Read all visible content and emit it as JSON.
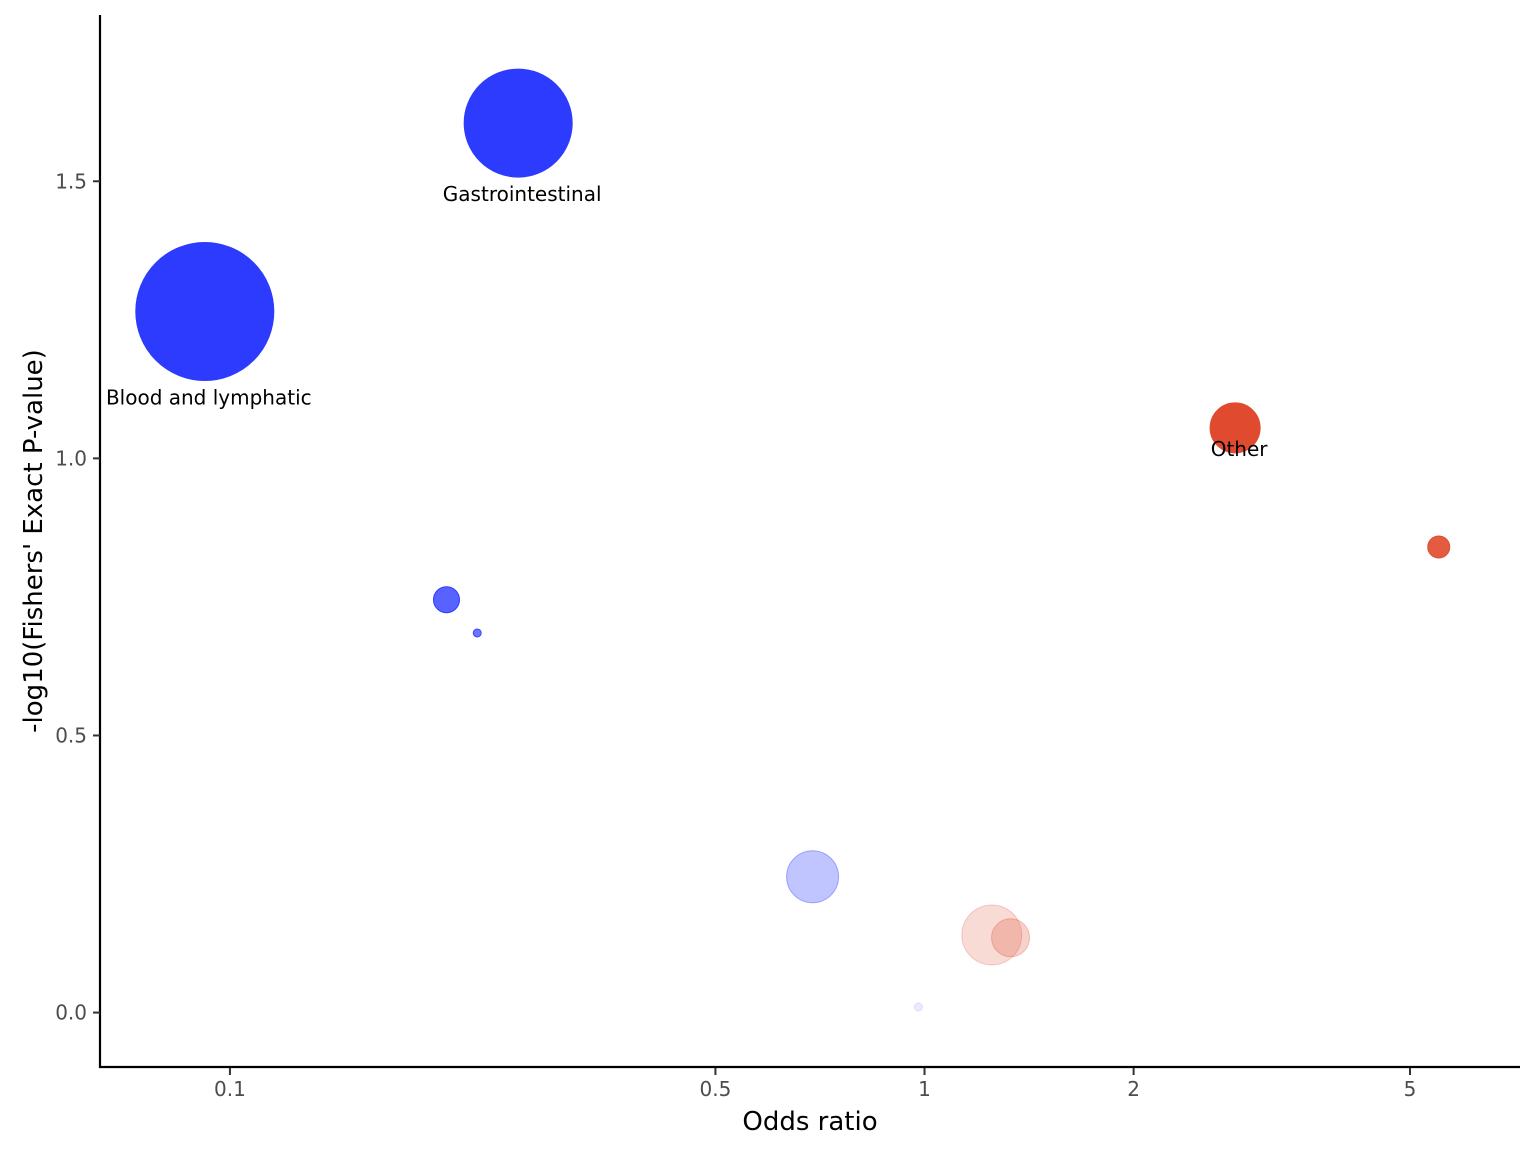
{
  "chart_data": {
    "type": "scatter",
    "xlabel": "Odds ratio",
    "ylabel": "-log10(Fishers' Exact P-value)",
    "x_scale": "log10",
    "xlim": [
      0.065,
      7.2
    ],
    "ylim": [
      -0.1,
      1.8
    ],
    "x_ticks": [
      {
        "value": 0.1,
        "label": "0.1"
      },
      {
        "value": 0.5,
        "label": "0.5"
      },
      {
        "value": 1,
        "label": "1"
      },
      {
        "value": 2,
        "label": "2"
      },
      {
        "value": 5,
        "label": "5"
      }
    ],
    "y_ticks": [
      {
        "value": 0.0,
        "label": "0.0"
      },
      {
        "value": 0.5,
        "label": "0.5"
      },
      {
        "value": 1.0,
        "label": "1.0"
      },
      {
        "value": 1.5,
        "label": "1.5"
      }
    ],
    "grid": false,
    "legend": "none",
    "points": [
      {
        "x": 0.092,
        "y": 1.265,
        "size": 69,
        "color": "#2d3bff",
        "opacity": 1.0,
        "label": "Blood and lymphatic"
      },
      {
        "x": 0.26,
        "y": 1.605,
        "size": 54,
        "color": "#2d3bff",
        "opacity": 1.0,
        "label": "Gastrointestinal"
      },
      {
        "x": 2.8,
        "y": 1.055,
        "size": 25,
        "color": "#e04a2e",
        "opacity": 1.0,
        "label": "Other"
      },
      {
        "x": 5.5,
        "y": 0.84,
        "size": 11,
        "color": "#e04a2e",
        "opacity": 0.9,
        "label": ""
      },
      {
        "x": 0.205,
        "y": 0.745,
        "size": 13,
        "color": "#2d3bff",
        "opacity": 0.8,
        "label": ""
      },
      {
        "x": 0.227,
        "y": 0.685,
        "size": 4,
        "color": "#2d3bff",
        "opacity": 0.7,
        "label": ""
      },
      {
        "x": 0.69,
        "y": 0.245,
        "size": 26,
        "color": "#2d3bff",
        "opacity": 0.3,
        "label": ""
      },
      {
        "x": 1.25,
        "y": 0.14,
        "size": 30,
        "color": "#e04a2e",
        "opacity": 0.2,
        "label": ""
      },
      {
        "x": 1.33,
        "y": 0.135,
        "size": 19,
        "color": "#e04a2e",
        "opacity": 0.25,
        "label": ""
      },
      {
        "x": 0.98,
        "y": 0.01,
        "size": 4,
        "color": "#2d3bff",
        "opacity": 0.1,
        "label": ""
      }
    ]
  }
}
